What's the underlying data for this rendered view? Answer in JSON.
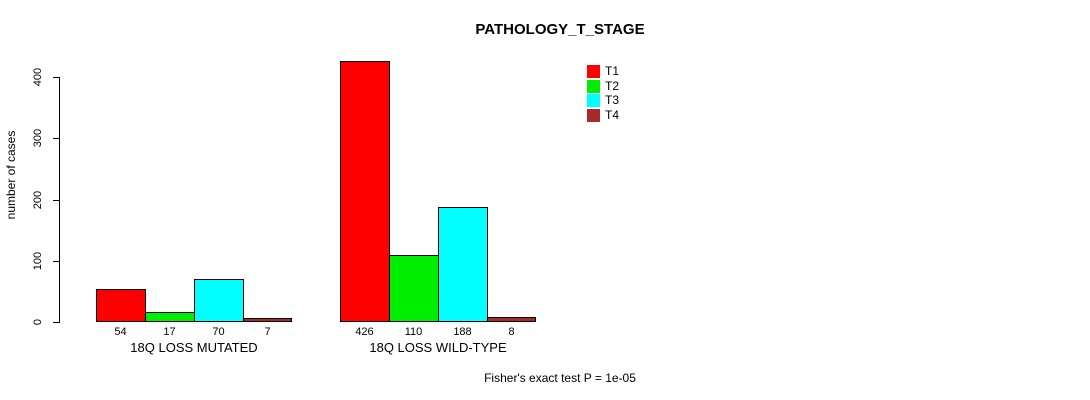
{
  "title": "PATHOLOGY_T_STAGE",
  "y_axis_label": "number of cases",
  "footer_note": "Fisher's exact test P = 1e-05",
  "chart_data": {
    "type": "bar",
    "title": "PATHOLOGY_T_STAGE",
    "xlabel": "",
    "ylabel": "number of cases",
    "categories": [
      "18Q LOSS MUTATED",
      "18Q LOSS WILD-TYPE"
    ],
    "series": [
      {
        "name": "T1",
        "color": "#ff0000",
        "values": [
          54,
          426
        ]
      },
      {
        "name": "T2",
        "color": "#00ee00",
        "values": [
          17,
          110
        ]
      },
      {
        "name": "T3",
        "color": "#00ffff",
        "values": [
          70,
          188
        ]
      },
      {
        "name": "T4",
        "color": "#a52a2a",
        "values": [
          7,
          8
        ]
      }
    ],
    "yticks": [
      0,
      100,
      200,
      300,
      400
    ],
    "ylim": [
      0,
      435
    ],
    "grid": false,
    "bar_value_labels_shown": true,
    "legend_position": "top-right",
    "annotation": "Fisher's exact test P = 1e-05"
  }
}
